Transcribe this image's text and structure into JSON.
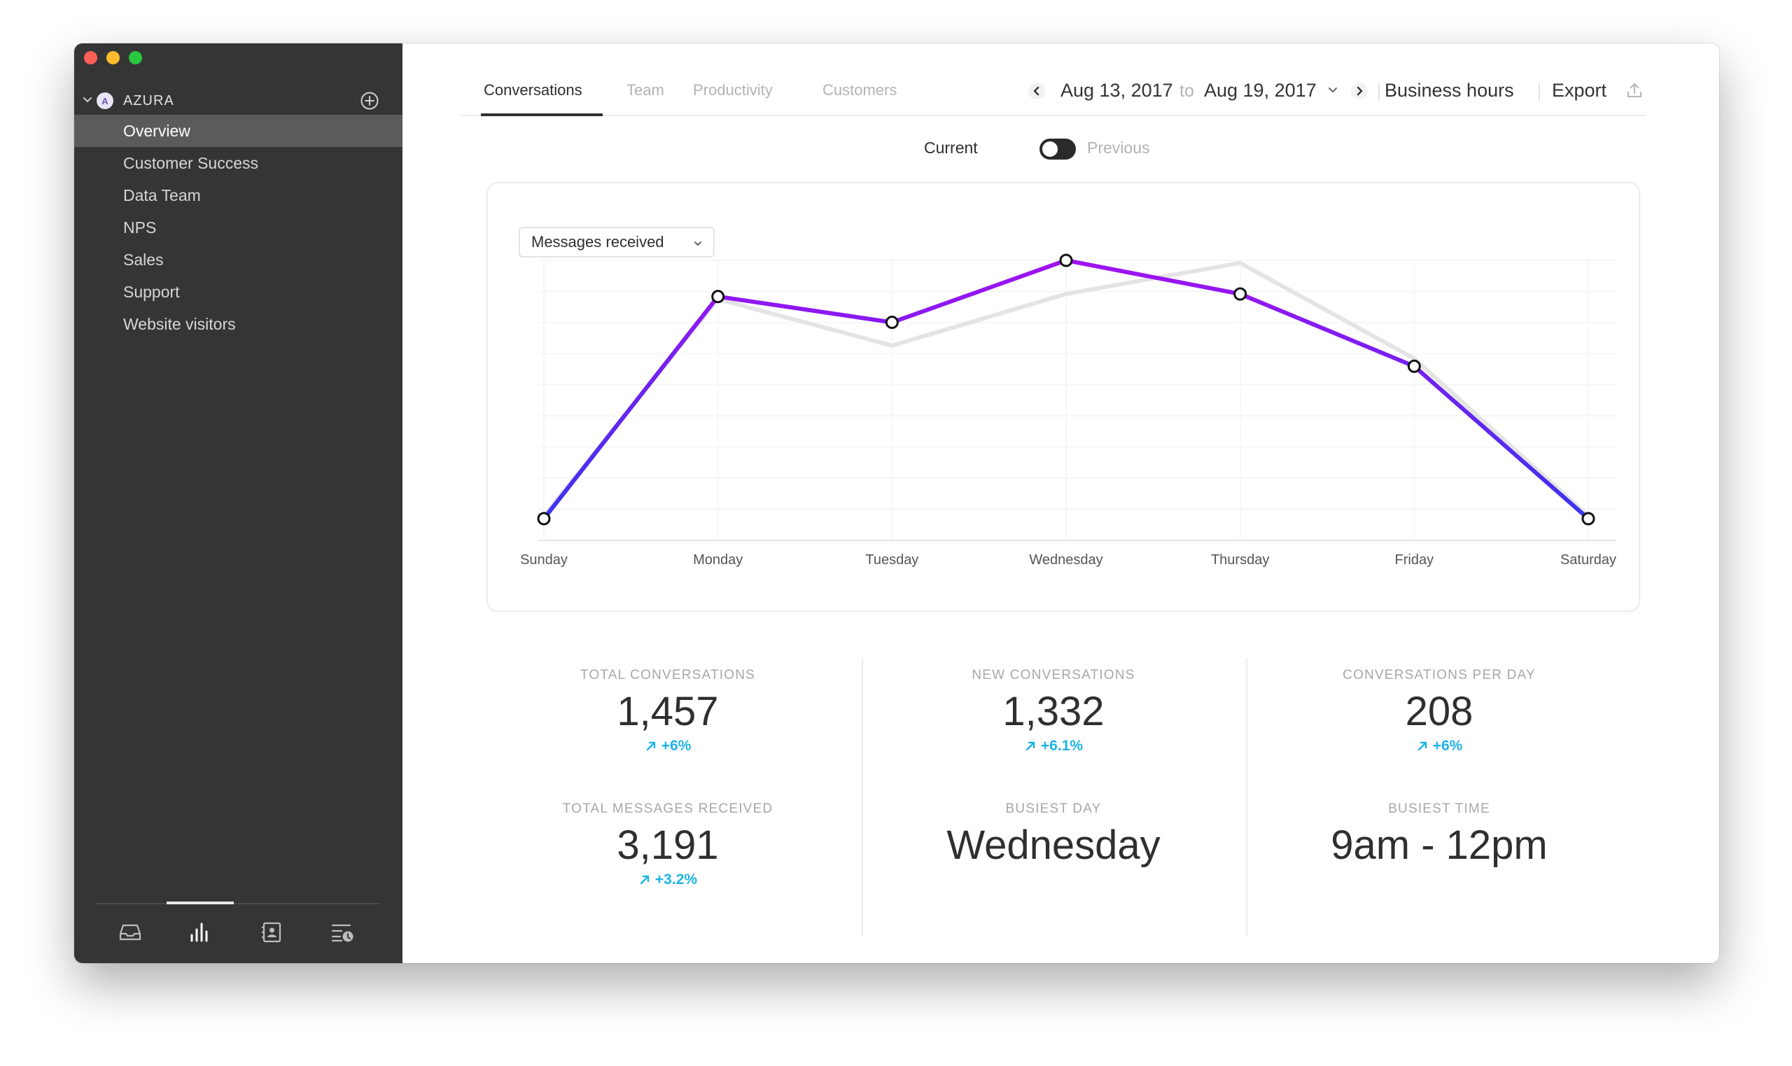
{
  "sidebar": {
    "team": {
      "initial": "A",
      "name": "AZURA"
    },
    "items": [
      {
        "label": "Overview",
        "active": true
      },
      {
        "label": "Customer Success",
        "active": false
      },
      {
        "label": "Data Team",
        "active": false
      },
      {
        "label": "NPS",
        "active": false
      },
      {
        "label": "Sales",
        "active": false
      },
      {
        "label": "Support",
        "active": false
      },
      {
        "label": "Website visitors",
        "active": false
      }
    ],
    "bottom_icons": [
      "inbox-icon",
      "reports-icon",
      "contacts-icon",
      "activity-log-icon"
    ]
  },
  "header": {
    "tabs": [
      {
        "label": "Conversations",
        "active": true
      },
      {
        "label": "Team",
        "active": false
      },
      {
        "label": "Productivity",
        "active": false
      },
      {
        "label": "Customers",
        "active": false
      }
    ],
    "date_start": "Aug 13, 2017",
    "date_to": "to",
    "date_end": "Aug 19, 2017",
    "business_hours": "Business hours",
    "export": "Export"
  },
  "compare": {
    "current": "Current",
    "previous": "Previous"
  },
  "metric_select": {
    "value": "Messages received"
  },
  "chart_data": {
    "type": "line",
    "categories": [
      "Sunday",
      "Monday",
      "Tuesday",
      "Wednesday",
      "Thursday",
      "Friday",
      "Saturday"
    ],
    "series": [
      {
        "values": [
          0,
          86,
          76,
          100,
          87,
          59,
          0
        ]
      },
      {
        "values": [
          1,
          85,
          67,
          87,
          99,
          62,
          1
        ]
      }
    ],
    "ylim": [
      0,
      100
    ],
    "grid": true,
    "colors": {
      "current_start": "#3b34f0",
      "current_end": "#a012f0",
      "previous": "#e4e4e4"
    }
  },
  "stats": {
    "total_conversations": {
      "label": "TOTAL CONVERSATIONS",
      "value": "1,457",
      "change": "+6%"
    },
    "new_conversations": {
      "label": "NEW CONVERSATIONS",
      "value": "1,332",
      "change": "+6.1%"
    },
    "conversations_per_day": {
      "label": "CONVERSATIONS PER DAY",
      "value": "208",
      "change": "+6%"
    },
    "total_messages": {
      "label": "TOTAL MESSAGES RECEIVED",
      "value": "3,191",
      "change": "+3.2%"
    },
    "busiest_day": {
      "label": "BUSIEST DAY",
      "value": "Wednesday"
    },
    "busiest_time": {
      "label": "BUSIEST TIME",
      "value": "9am - 12pm"
    }
  },
  "accent_color": "#1db3e6"
}
